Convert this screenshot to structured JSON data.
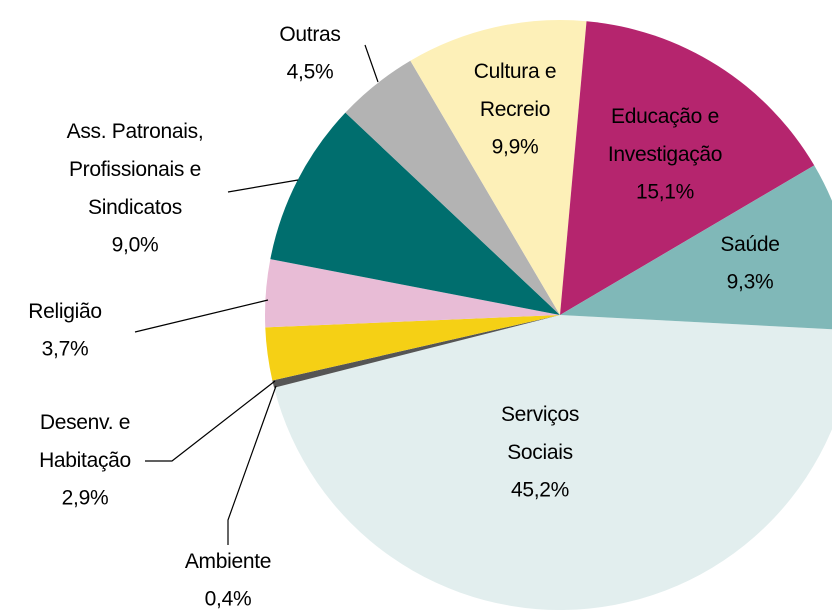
{
  "chart_data": {
    "type": "pie",
    "categories": [
      "Serviços\nSociais",
      "Ambiente",
      "Desenv. e\nHabitação",
      "Religião",
      "Ass. Patronais,\nProfissionais e\nSindicatos",
      "Outras",
      "Cultura e\nRecreio",
      "Educação e\nInvestigação",
      "Saúde"
    ],
    "values": [
      45.2,
      0.4,
      2.9,
      3.7,
      9.0,
      4.5,
      9.9,
      15.1,
      9.3
    ],
    "value_labels": [
      "45,2%",
      "0,4%",
      "2,9%",
      "3,7%",
      "9,0%",
      "4,5%",
      "9,9%",
      "15,1%",
      "9,3%"
    ],
    "colors": [
      "#e2eeee",
      "#555555",
      "#f5d015",
      "#e8bcd6",
      "#006e6e",
      "#b3b3b3",
      "#fdf0b8",
      "#b5256e",
      "#80b8b8"
    ]
  }
}
